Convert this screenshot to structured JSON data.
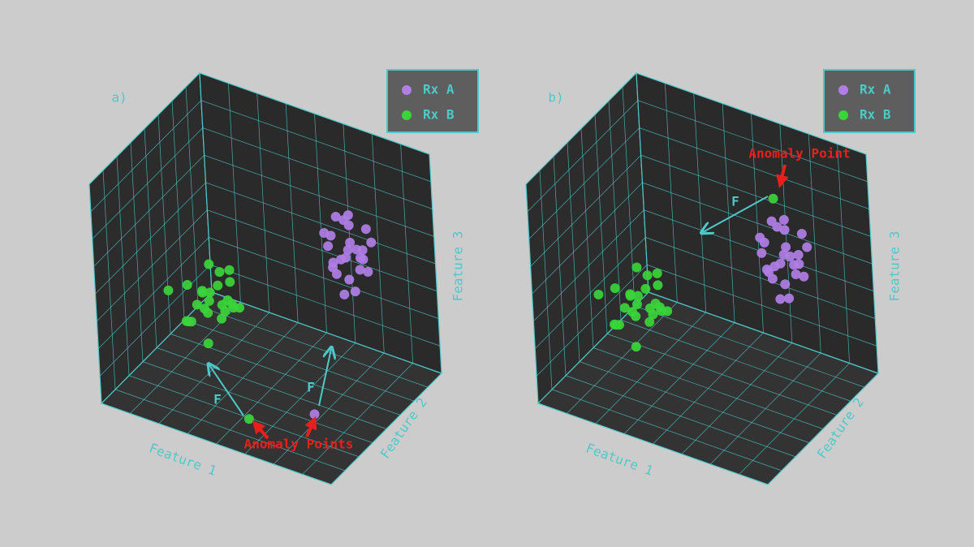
{
  "chart_data": [
    {
      "type": "scatter3d",
      "label": "a)",
      "xlabel": "Feature 1",
      "ylabel": "Feature 2",
      "zlabel": "Feature 3",
      "xlim": [
        0,
        10
      ],
      "ylim": [
        0,
        10
      ],
      "zlim": [
        0,
        10
      ],
      "annotations": [
        "F",
        "F",
        "Anomaly Points"
      ],
      "series": [
        {
          "name": "Rx A",
          "color": "#b07ee6",
          "x": [
            8.1,
            7.6,
            8.5,
            7.9,
            8.8,
            7.4,
            8.3,
            8.0,
            7.7,
            8.6,
            7.2,
            8.4,
            7.8,
            8.9,
            8.2,
            7.5,
            8.7,
            7.3,
            8.0,
            8.5,
            7.9,
            8.3,
            7.6,
            8.1,
            8.8,
            8.4
          ],
          "y": [
            6,
            5.5,
            6.4,
            6.8,
            5.9,
            6.2,
            5.2,
            6.6,
            7.0,
            5.7,
            6.0,
            6.9,
            5.4,
            6.3,
            7.3,
            6.5,
            5.8,
            6.7,
            5.1,
            7.1,
            6.1,
            5.6,
            7.4,
            6.2,
            6.9,
            2
          ],
          "z": [
            6.6,
            7.2,
            6.0,
            7.6,
            6.9,
            5.8,
            7.0,
            8.2,
            6.3,
            5.4,
            7.4,
            6.6,
            7.8,
            6.1,
            5.9,
            8.0,
            7.3,
            5.2,
            6.8,
            7.5,
            4.8,
            8.6,
            6.4,
            5.5,
            7.1,
            1.6
          ]
        },
        {
          "name": "Rx B",
          "color": "#3bd43b",
          "x": [
            3.2,
            3.8,
            4.1,
            3.5,
            4.4,
            2.9,
            3.9,
            4.6,
            3.1,
            3.6,
            4.2,
            2.6,
            3.3,
            4.0,
            4.8,
            3.7,
            2.8,
            4.3,
            3.4,
            3.9,
            2.4,
            4.5,
            3.0,
            3.6,
            1.8,
            6
          ],
          "y": [
            3,
            2.5,
            3.4,
            2.8,
            3.1,
            3.6,
            2.2,
            2.9,
            3.3,
            3.8,
            2.6,
            2.9,
            3.5,
            3.1,
            2.4,
            3.9,
            2.7,
            3.3,
            2.1,
            3.0,
            3.2,
            3.6,
            1.9,
            2.5,
            2.8,
            1
          ],
          "z": [
            4.8,
            5.2,
            4.5,
            4.0,
            5.6,
            4.3,
            5.0,
            4.6,
            3.8,
            5.4,
            4.1,
            4.9,
            5.8,
            4.4,
            5.1,
            3.6,
            3.4,
            6.0,
            4.7,
            5.3,
            3.0,
            4.2,
            3.9,
            2.8,
            4.4,
            1
          ]
        }
      ]
    },
    {
      "type": "scatter3d",
      "label": "b)",
      "xlabel": "Feature 1",
      "ylabel": "Feature 2",
      "zlabel": "Feature 3",
      "xlim": [
        0,
        10
      ],
      "ylim": [
        0,
        10
      ],
      "zlim": [
        0,
        10
      ],
      "annotations": [
        "F",
        "Anomaly Point"
      ],
      "series": [
        {
          "name": "Rx A",
          "color": "#b07ee6",
          "x": [
            8.0,
            7.5,
            8.4,
            7.8,
            8.7,
            7.3,
            8.2,
            7.9,
            7.6,
            8.5,
            7.1,
            8.3,
            7.7,
            8.8,
            8.1,
            7.4,
            8.6,
            7.2,
            7.9,
            8.4,
            7.8,
            8.2,
            7.5,
            8.0,
            8.7
          ],
          "y": [
            6,
            5.4,
            6.5,
            6.9,
            5.8,
            6.3,
            5.1,
            6.7,
            7.1,
            5.6,
            6.1,
            7.0,
            5.3,
            6.4,
            7.4,
            6.6,
            5.7,
            6.8,
            5.0,
            7.2,
            6.2,
            5.5,
            7.5,
            6.3,
            7.0
          ],
          "z": [
            6.3,
            6.9,
            5.7,
            7.3,
            6.6,
            5.5,
            6.7,
            7.9,
            6.0,
            5.1,
            7.1,
            6.3,
            7.5,
            5.8,
            5.6,
            7.7,
            7.0,
            4.9,
            6.5,
            7.2,
            4.5,
            8.3,
            6.1,
            5.2,
            6.8
          ]
        },
        {
          "name": "Rx B",
          "color": "#3bd43b",
          "x": [
            2.8,
            3.4,
            3.7,
            3.1,
            4.0,
            2.5,
            3.5,
            4.2,
            2.7,
            3.2,
            3.8,
            2.2,
            2.9,
            3.6,
            4.4,
            3.3,
            2.4,
            3.9,
            3.0,
            3.5,
            2.0,
            4.1,
            2.6,
            3.2,
            1.5,
            6.8
          ],
          "y": [
            3,
            2.5,
            3.4,
            2.8,
            3.1,
            3.6,
            2.2,
            2.9,
            3.3,
            3.8,
            2.6,
            2.9,
            3.5,
            3.1,
            2.4,
            3.9,
            2.7,
            3.3,
            2.1,
            3.0,
            3.2,
            3.6,
            1.9,
            2.5,
            2.8,
            8
          ],
          "z": [
            4.5,
            4.9,
            4.2,
            3.7,
            5.3,
            4.0,
            4.7,
            4.3,
            3.5,
            5.1,
            3.8,
            4.6,
            5.5,
            4.1,
            4.8,
            3.3,
            3.1,
            5.7,
            4.4,
            5.0,
            2.7,
            3.9,
            3.6,
            2.5,
            4.1,
            7.8
          ]
        }
      ]
    }
  ]
}
